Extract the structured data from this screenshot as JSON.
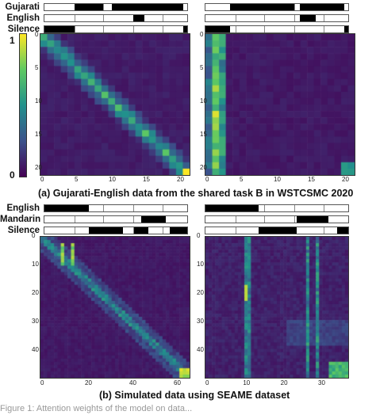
{
  "figure": {
    "top": {
      "labels": [
        "Gujarati",
        "English",
        "Silence"
      ],
      "rows": [
        [
          [
            0.21,
            0.41
          ],
          [
            0.47,
            0.97
          ]
        ],
        [
          [
            0.62,
            0.7
          ]
        ],
        [
          [
            0.0,
            0.21
          ],
          [
            0.97,
            1.0
          ]
        ]
      ],
      "rows_right": [
        [
          [
            0.17,
            0.62
          ],
          [
            0.66,
            0.97
          ]
        ],
        [
          [
            0.66,
            0.77
          ]
        ],
        [
          [
            0.0,
            0.17
          ],
          [
            0.97,
            1.0
          ]
        ]
      ],
      "ticks": [
        "0",
        "5",
        "10",
        "15",
        "20"
      ],
      "caption": "(a) Gujarati-English data from the shared task B in WSTCSMC 2020"
    },
    "bottom": {
      "labels": [
        "English",
        "Mandarin",
        "Silence"
      ],
      "rows": [
        [
          [
            0.0,
            0.31
          ]
        ],
        [
          [
            0.68,
            0.85
          ]
        ],
        [
          [
            0.31,
            0.55
          ],
          [
            0.63,
            0.73
          ],
          [
            0.88,
            1.0
          ]
        ]
      ],
      "rows_right": [
        [
          [
            0.0,
            0.37
          ]
        ],
        [
          [
            0.64,
            0.86
          ]
        ],
        [
          [
            0.37,
            0.64
          ],
          [
            0.92,
            1.0
          ]
        ]
      ],
      "y_ticks": [
        "0",
        "10",
        "20",
        "30",
        "40"
      ],
      "x_ticks_left": [
        "0",
        "20",
        "40",
        "60"
      ],
      "x_ticks_right": [
        "0",
        "10",
        "20",
        "30"
      ],
      "caption": "(b) Simulated data using SEAME dataset"
    },
    "colorbar": {
      "max": "1",
      "min": "0"
    },
    "cut_text": "Figure 1: Attention weights of the model on data..."
  }
}
